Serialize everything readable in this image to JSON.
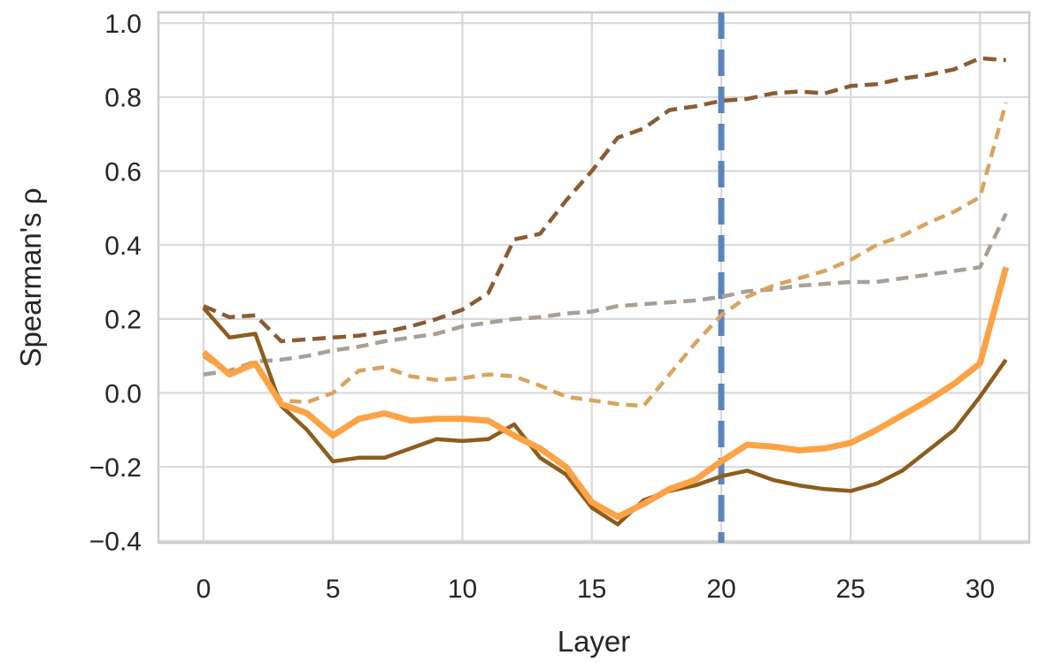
{
  "chart_data": {
    "type": "line",
    "title": "",
    "xlabel": "Layer",
    "ylabel": "Spearman's ρ",
    "grid": true,
    "legend": "none",
    "xlim": [
      -1.744,
      31.9
    ],
    "ylim": [
      -0.405,
      1.029
    ],
    "xticks": {
      "values": [
        0,
        5,
        10,
        15,
        20,
        25,
        30
      ],
      "labels": [
        "0",
        "5",
        "10",
        "15",
        "20",
        "25",
        "30"
      ]
    },
    "yticks": {
      "values": [
        1.0,
        0.8,
        0.6,
        0.4,
        0.2,
        0.0,
        -0.2,
        -0.4
      ],
      "labels": [
        "1.0",
        "0.8",
        "0.6",
        "0.4",
        "0.2",
        "0.0",
        "−0.2",
        "−0.4"
      ]
    },
    "x": [
      0,
      1,
      2,
      3,
      4,
      5,
      6,
      7,
      8,
      9,
      10,
      11,
      12,
      13,
      14,
      15,
      16,
      17,
      18,
      19,
      20,
      21,
      22,
      23,
      24,
      25,
      26,
      27,
      28,
      29,
      30,
      31
    ],
    "vline": {
      "x": 20,
      "color": "#5d84ba",
      "style": "dashed"
    },
    "series": [
      {
        "name": "dark-brown-dashed",
        "color": "#8a5c33",
        "style": "dashed",
        "width": 4.5,
        "values": [
          0.235,
          0.205,
          0.21,
          0.14,
          0.145,
          0.15,
          0.155,
          0.165,
          0.18,
          0.2,
          0.225,
          0.27,
          0.415,
          0.43,
          0.52,
          0.6,
          0.69,
          0.715,
          0.765,
          0.775,
          0.79,
          0.795,
          0.81,
          0.815,
          0.81,
          0.83,
          0.835,
          0.85,
          0.86,
          0.875,
          0.905,
          0.9
        ]
      },
      {
        "name": "gray-dashed",
        "color": "#a89f97",
        "style": "dashed",
        "width": 4.5,
        "values": [
          0.05,
          0.06,
          0.085,
          0.09,
          0.1,
          0.115,
          0.125,
          0.14,
          0.15,
          0.16,
          0.18,
          0.19,
          0.2,
          0.205,
          0.215,
          0.22,
          0.235,
          0.24,
          0.245,
          0.25,
          0.26,
          0.275,
          0.28,
          0.29,
          0.295,
          0.3,
          0.3,
          0.31,
          0.32,
          0.33,
          0.34,
          0.485
        ]
      },
      {
        "name": "tan-dashed",
        "color": "#d9a45f",
        "style": "dashed",
        "width": 4.5,
        "values": [
          0.1,
          0.05,
          0.075,
          -0.02,
          -0.025,
          0.0,
          0.06,
          0.07,
          0.045,
          0.035,
          0.04,
          0.05,
          0.045,
          0.02,
          -0.01,
          -0.02,
          -0.03,
          -0.035,
          0.05,
          0.135,
          0.21,
          0.26,
          0.29,
          0.31,
          0.33,
          0.36,
          0.4,
          0.425,
          0.46,
          0.49,
          0.53,
          0.785
        ]
      },
      {
        "name": "dark-brown-solid",
        "color": "#8e5c1d",
        "style": "solid",
        "width": 4.5,
        "values": [
          0.23,
          0.15,
          0.16,
          -0.035,
          -0.1,
          -0.185,
          -0.175,
          -0.175,
          -0.15,
          -0.125,
          -0.13,
          -0.125,
          -0.085,
          -0.175,
          -0.22,
          -0.31,
          -0.355,
          -0.29,
          -0.265,
          -0.25,
          -0.225,
          -0.21,
          -0.235,
          -0.25,
          -0.26,
          -0.265,
          -0.245,
          -0.21,
          -0.155,
          -0.1,
          -0.01,
          0.09
        ]
      },
      {
        "name": "orange-solid",
        "color": "#fda245",
        "style": "solid",
        "width": 7,
        "values": [
          0.11,
          0.05,
          0.08,
          -0.03,
          -0.055,
          -0.115,
          -0.07,
          -0.055,
          -0.075,
          -0.07,
          -0.07,
          -0.075,
          -0.115,
          -0.15,
          -0.2,
          -0.295,
          -0.335,
          -0.3,
          -0.26,
          -0.235,
          -0.185,
          -0.14,
          -0.145,
          -0.155,
          -0.15,
          -0.135,
          -0.1,
          -0.06,
          -0.02,
          0.025,
          0.08,
          0.34
        ]
      }
    ],
    "colors": {
      "grid": "#d9d9d9",
      "spine": "#cccccc",
      "text": "#262626",
      "background": "#ffffff"
    }
  }
}
